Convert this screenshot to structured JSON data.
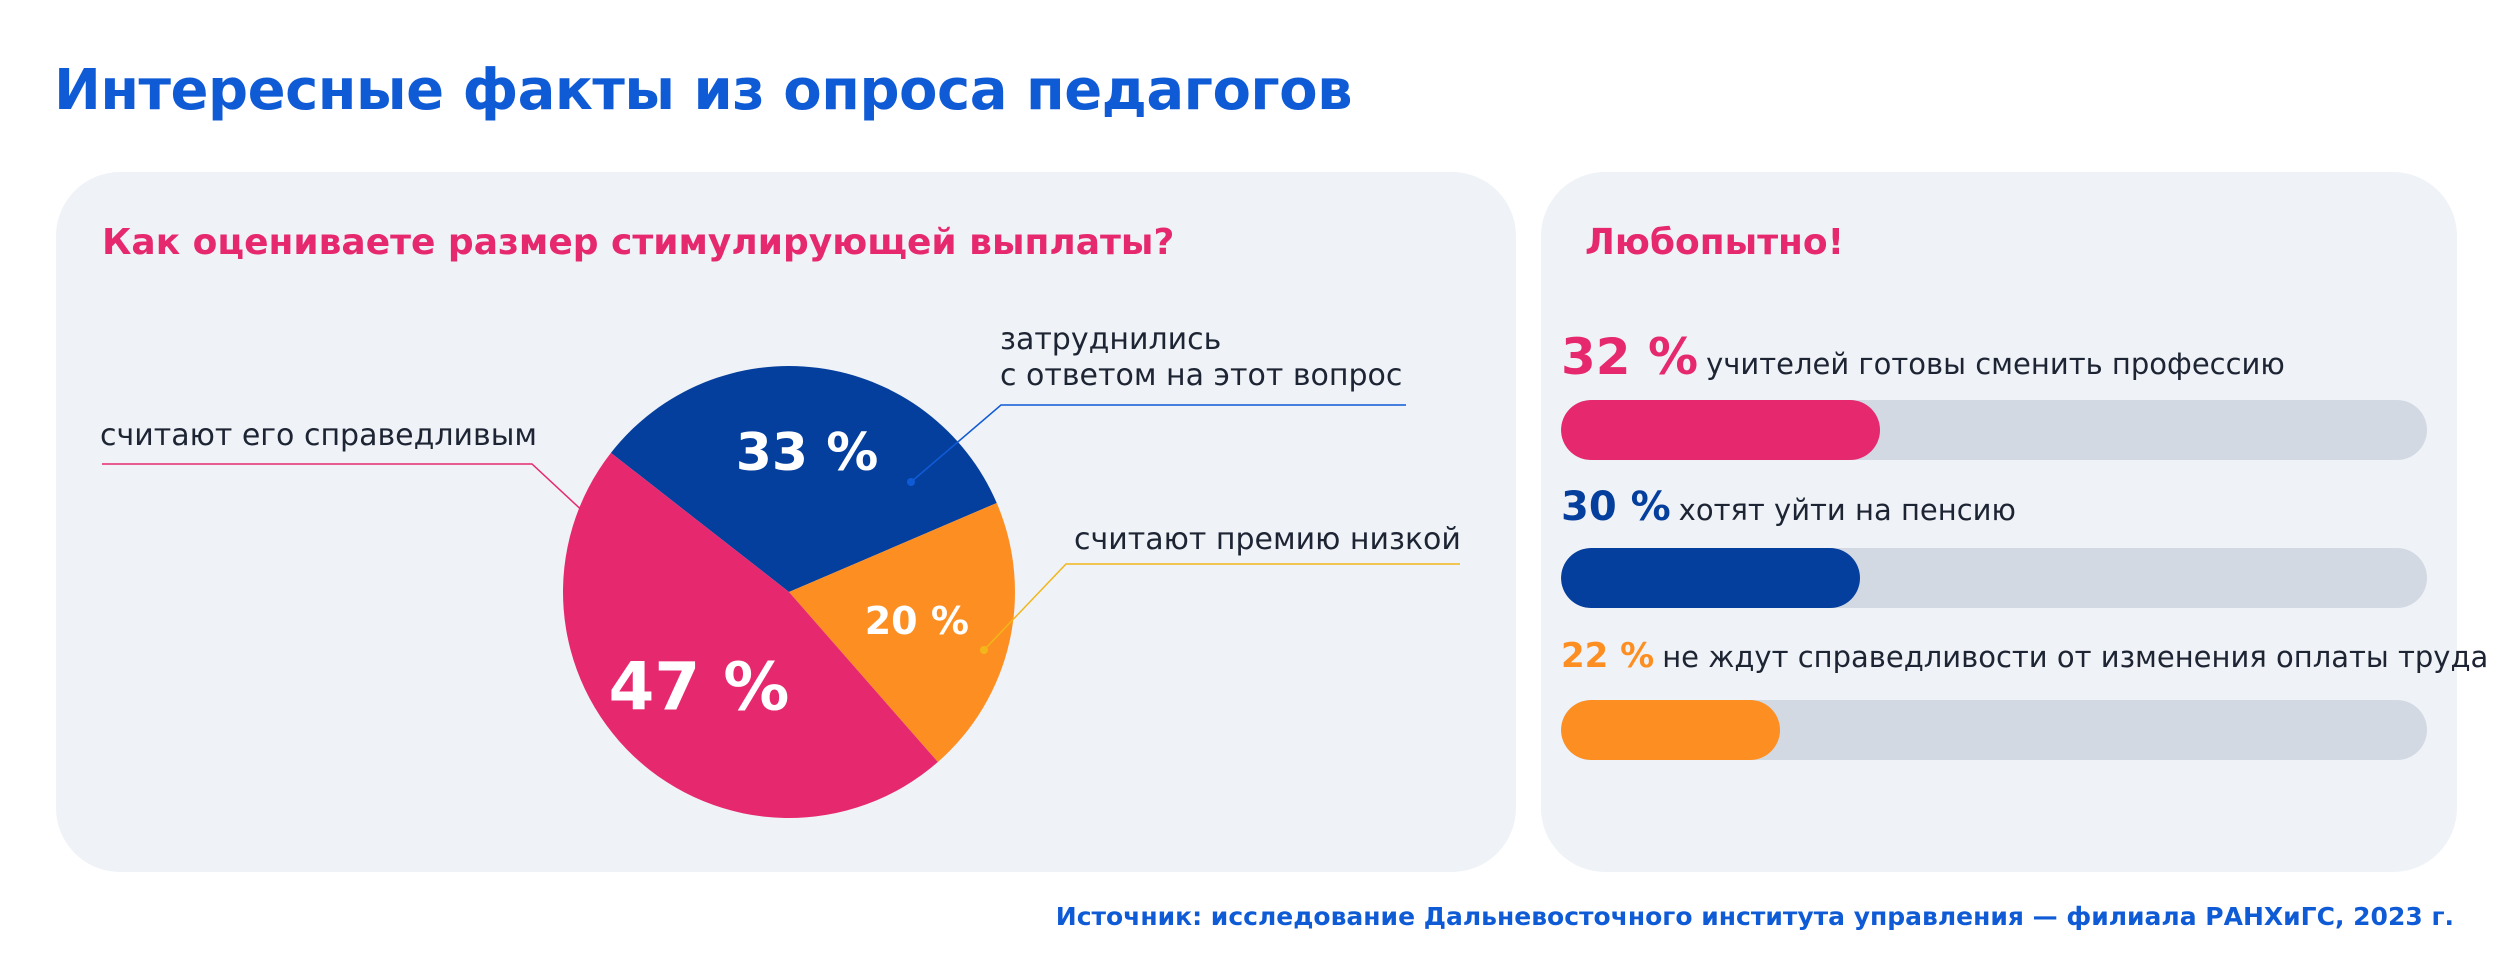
{
  "title": "Интересные факты из опроса педагогов",
  "left_panel": {
    "heading": "Как оцениваете размер стимулирующей выплаты?",
    "callouts": [
      {
        "line1": "затруднились",
        "line2": "с ответом на этот вопрос"
      },
      {
        "line1": "считают премию низкой"
      },
      {
        "line1": "считают его справедливым"
      }
    ]
  },
  "chart_data": [
    {
      "type": "pie",
      "title": "Как оцениваете размер стимулирующей выплаты?",
      "slices": [
        {
          "label": "затруднились с ответом на этот вопрос",
          "value": 33,
          "display": "33 %",
          "color": "#053f9e"
        },
        {
          "label": "считают премию низкой",
          "value": 20,
          "display": "20 %",
          "color": "#fd8f22"
        },
        {
          "label": "считают его справедливым",
          "value": 47,
          "display": "47 %",
          "color": "#e6296f"
        }
      ]
    },
    {
      "type": "bar",
      "title": "Любопытно!",
      "orientation": "horizontal",
      "xlim": [
        0,
        100
      ],
      "bars": [
        {
          "value": 32,
          "display": "32 %",
          "label": "учителей готовы сменить профессию",
          "color": "#e6296f"
        },
        {
          "value": 30,
          "display": "30 %",
          "label": "хотят уйти на пенсию",
          "color": "#053f9e"
        },
        {
          "value": 22,
          "display": "22 %",
          "label": "не ждут справедливости от изменения оплаты труда",
          "color": "#fd8f22"
        }
      ]
    }
  ],
  "right_panel": {
    "heading": "Любопытно!"
  },
  "source": "Источник: исследование Дальневосточного института управления — филиала РАНХиГС, 2023 г."
}
